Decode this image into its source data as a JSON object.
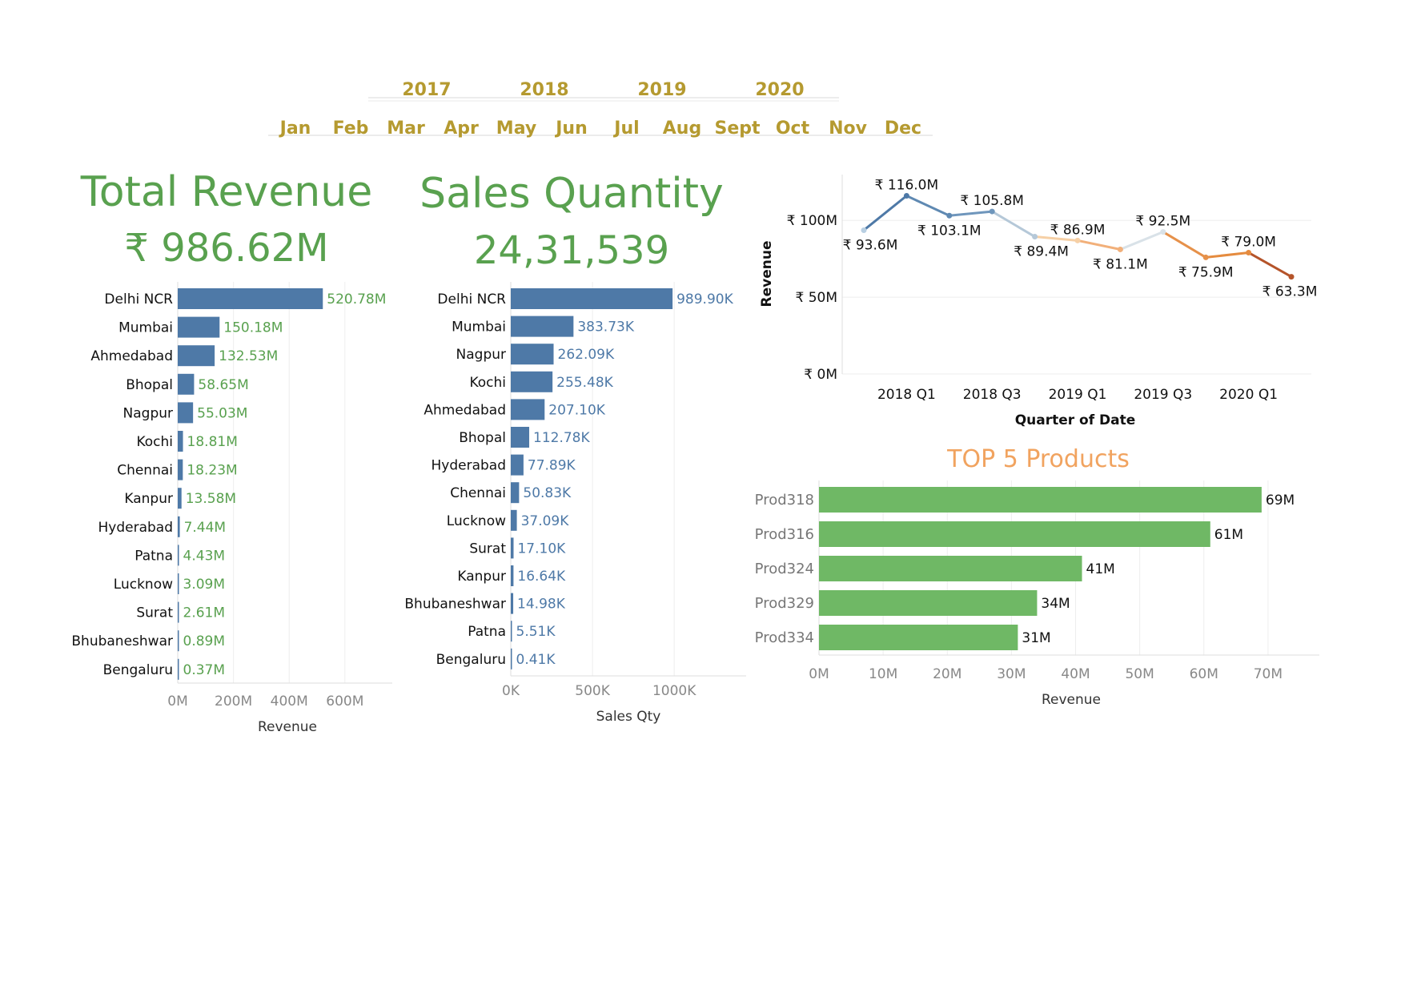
{
  "filters": {
    "years": [
      "2017",
      "2018",
      "2019",
      "2020"
    ],
    "months": [
      "Jan",
      "Feb",
      "Mar",
      "Apr",
      "May",
      "Jun",
      "Jul",
      "Aug",
      "Sept",
      "Oct",
      "Nov",
      "Dec"
    ]
  },
  "kpis": {
    "revenue": {
      "title": "Total Revenue",
      "value": "₹ 986.62M"
    },
    "quantity": {
      "title": "Sales Quantity",
      "value": "24,31,539"
    }
  },
  "colors": {
    "green": "#59a14f",
    "blue": "#4e79a7",
    "gold": "#b59a30",
    "product_green": "#6fb865",
    "orange_title": "#f1a35f"
  },
  "chart_data": [
    {
      "id": "revenue_by_market",
      "type": "bar",
      "orientation": "horizontal",
      "categories": [
        "Delhi NCR",
        "Mumbai",
        "Ahmedabad",
        "Bhopal",
        "Nagpur",
        "Kochi",
        "Chennai",
        "Kanpur",
        "Hyderabad",
        "Patna",
        "Lucknow",
        "Surat",
        "Bhubaneshwar",
        "Bengaluru"
      ],
      "values": [
        520.78,
        150.18,
        132.53,
        58.65,
        55.03,
        18.81,
        18.23,
        13.58,
        7.44,
        4.43,
        3.09,
        2.61,
        0.89,
        0.37
      ],
      "data_labels": [
        "520.78M",
        "150.18M",
        "132.53M",
        "58.65M",
        "55.03M",
        "18.81M",
        "18.23M",
        "13.58M",
        "7.44M",
        "4.43M",
        "3.09M",
        "2.61M",
        "0.89M",
        "0.37M"
      ],
      "xticks": [
        0,
        200,
        400,
        600
      ],
      "xtick_labels": [
        "0M",
        "200M",
        "400M",
        "600M"
      ],
      "xlim": [
        0,
        770
      ],
      "xlabel": "Revenue"
    },
    {
      "id": "quantity_by_market",
      "type": "bar",
      "orientation": "horizontal",
      "categories": [
        "Delhi NCR",
        "Mumbai",
        "Nagpur",
        "Kochi",
        "Ahmedabad",
        "Bhopal",
        "Hyderabad",
        "Chennai",
        "Lucknow",
        "Surat",
        "Kanpur",
        "Bhubaneshwar",
        "Patna",
        "Bengaluru"
      ],
      "values": [
        989.9,
        383.73,
        262.09,
        255.48,
        207.1,
        112.78,
        77.89,
        50.83,
        37.09,
        17.1,
        16.64,
        14.98,
        5.51,
        0.41
      ],
      "data_labels": [
        "989.90K",
        "383.73K",
        "262.09K",
        "255.48K",
        "207.10K",
        "112.78K",
        "77.89K",
        "50.83K",
        "37.09K",
        "17.10K",
        "16.64K",
        "14.98K",
        "5.51K",
        "0.41K"
      ],
      "xticks": [
        0,
        500,
        1000
      ],
      "xtick_labels": [
        "0K",
        "500K",
        "1000K"
      ],
      "xlim": [
        0,
        1440
      ],
      "xlabel": "Sales Qty"
    },
    {
      "id": "revenue_trend",
      "type": "line",
      "x": [
        "2017 Q4",
        "2018 Q1",
        "2018 Q2",
        "2018 Q3",
        "2018 Q4",
        "2019 Q1",
        "2019 Q2",
        "2019 Q3",
        "2019 Q4",
        "2020 Q1",
        "2020 Q2"
      ],
      "values": [
        93.6,
        116.0,
        103.1,
        105.8,
        89.4,
        86.9,
        81.1,
        92.5,
        75.9,
        79.0,
        63.3
      ],
      "data_labels": [
        "₹ 93.6M",
        "₹ 116.0M",
        "₹ 103.1M",
        "₹ 105.8M",
        "₹ 89.4M",
        "₹ 86.9M",
        "₹ 81.1M",
        "₹ 92.5M",
        "₹ 75.9M",
        "₹ 79.0M",
        "₹ 63.3M"
      ],
      "xtick_labels": [
        "2018 Q1",
        "2018 Q3",
        "2019 Q1",
        "2019 Q3",
        "2020 Q1"
      ],
      "yticks": [
        0,
        50,
        100
      ],
      "ytick_labels": [
        "₹ 0M",
        "₹ 50M",
        "₹ 100M"
      ],
      "ylim": [
        0,
        122
      ],
      "xlabel": "Quarter of Date",
      "ylabel": "Revenue",
      "grid": true
    },
    {
      "id": "top5_products",
      "type": "bar",
      "orientation": "horizontal",
      "title": "TOP 5 Products",
      "categories": [
        "Prod318",
        "Prod316",
        "Prod324",
        "Prod329",
        "Prod334"
      ],
      "values": [
        69,
        61,
        41,
        34,
        31
      ],
      "data_labels": [
        "69M",
        "61M",
        "41M",
        "34M",
        "31M"
      ],
      "xticks": [
        0,
        10,
        20,
        30,
        40,
        50,
        60,
        70
      ],
      "xtick_labels": [
        "0M",
        "10M",
        "20M",
        "30M",
        "40M",
        "50M",
        "60M",
        "70M"
      ],
      "xlim": [
        0,
        78
      ],
      "xlabel": "Revenue"
    }
  ]
}
